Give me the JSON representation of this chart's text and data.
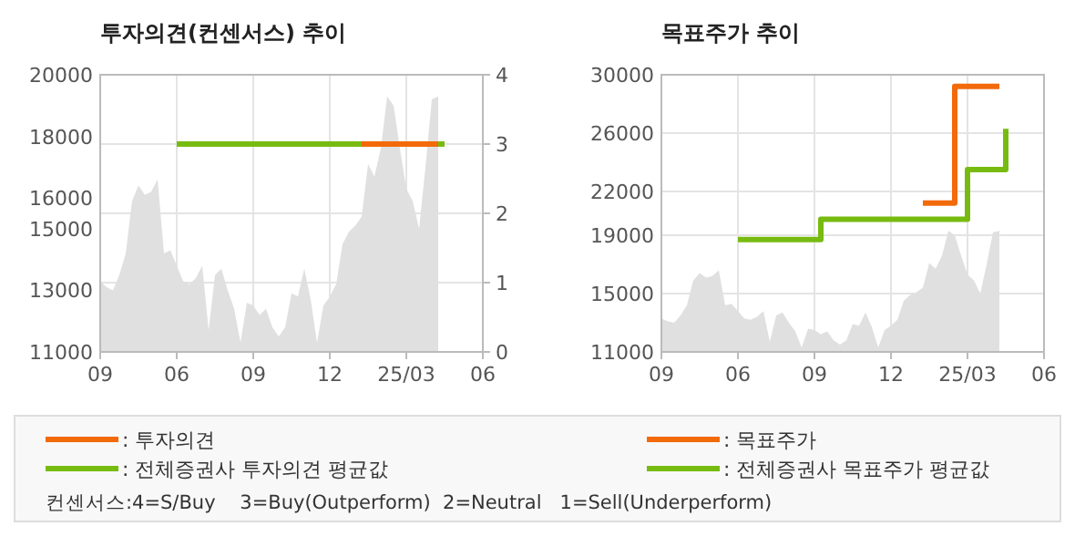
{
  "chart_data": [
    {
      "type": "area",
      "title": "투자의견(컨센서스) 추이",
      "grid": true,
      "legend": "bottom",
      "categories": [
        "09",
        null,
        null,
        null,
        null,
        null,
        null,
        null,
        null,
        null,
        null,
        null,
        "06",
        null,
        null,
        null,
        null,
        null,
        null,
        null,
        null,
        null,
        null,
        null,
        "09",
        null,
        null,
        null,
        null,
        null,
        null,
        null,
        null,
        null,
        null,
        null,
        "12",
        null,
        null,
        null,
        null,
        null,
        null,
        null,
        null,
        null,
        null,
        null,
        "25/03",
        null,
        null,
        null,
        null,
        null,
        null,
        null,
        null,
        null,
        null,
        null,
        "06"
      ],
      "ylim": [
        11000,
        20000
      ],
      "yticks": [
        11000,
        13000,
        15000,
        16000,
        18000,
        20000
      ],
      "y2lim": [
        0,
        4
      ],
      "y2ticks": [
        0,
        1,
        2,
        3,
        4
      ],
      "annotations": [
        "컨센서스:4=S/Buy    3=Buy(Outperform)  2=Neutral   1=Sell(Underperform)"
      ],
      "series": [
        {
          "color": "#e0e0e0",
          "values": [
            13300,
            13100,
            13000,
            13500,
            14200,
            15900,
            16400,
            16100,
            16200,
            16600,
            14200,
            14300,
            13800,
            13300,
            13200,
            13400,
            13800,
            11700,
            13500,
            13700,
            13000,
            12400,
            11300,
            12600,
            12500,
            12200,
            12400,
            11800,
            11500,
            11800,
            12900,
            12800,
            13700,
            12700,
            11300,
            12500,
            12800,
            13200,
            14500,
            14900,
            15100,
            15400,
            17100,
            16700,
            17600,
            19300,
            19000,
            17600,
            16300,
            15900,
            15000,
            17000,
            19200,
            19300,
            null,
            null,
            null,
            null,
            null,
            null,
            null
          ]
        },
        {
          "type": "line",
          "axis": "y2",
          "name": ": 투자의견",
          "color": "#f26a0a",
          "values": [
            null,
            null,
            null,
            null,
            null,
            null,
            null,
            null,
            null,
            null,
            null,
            null,
            null,
            null,
            null,
            null,
            null,
            null,
            null,
            null,
            null,
            null,
            null,
            null,
            null,
            null,
            null,
            null,
            null,
            null,
            null,
            null,
            null,
            null,
            null,
            null,
            null,
            null,
            null,
            null,
            null,
            3,
            3,
            3,
            3,
            3,
            3,
            3,
            3,
            3,
            3,
            3,
            3,
            3,
            null,
            null,
            null,
            null,
            null,
            null,
            null
          ]
        },
        {
          "type": "line",
          "axis": "y2",
          "name": ": 전체증권사 투자의견 평균값",
          "color": "#77bb11",
          "values": [
            null,
            null,
            null,
            null,
            null,
            null,
            null,
            null,
            null,
            null,
            null,
            null,
            3,
            3,
            3,
            3,
            3,
            3,
            3,
            3,
            3,
            3,
            3,
            3,
            3,
            3,
            3,
            3,
            3,
            3,
            3,
            3,
            3,
            3,
            3,
            3,
            3,
            3,
            3,
            3,
            3,
            3,
            null,
            null,
            null,
            null,
            null,
            null,
            null,
            null,
            null,
            null,
            null,
            3,
            3,
            null,
            null,
            null,
            null,
            null,
            null
          ]
        }
      ]
    },
    {
      "type": "step",
      "title": "목표주가 추이",
      "grid": true,
      "legend": "bottom",
      "categories": [
        "09",
        null,
        null,
        null,
        null,
        null,
        null,
        null,
        null,
        null,
        null,
        null,
        "06",
        null,
        null,
        null,
        null,
        null,
        null,
        null,
        null,
        null,
        null,
        null,
        "09",
        null,
        null,
        null,
        null,
        null,
        null,
        null,
        null,
        null,
        null,
        null,
        "12",
        null,
        null,
        null,
        null,
        null,
        null,
        null,
        null,
        null,
        null,
        null,
        "25/03",
        null,
        null,
        null,
        null,
        null,
        null,
        null,
        null,
        null,
        null,
        null,
        "06"
      ],
      "ylim": [
        11000,
        30000
      ],
      "yticks": [
        11000,
        15000,
        19000,
        22000,
        26000,
        30000
      ],
      "series": [
        {
          "type": "area",
          "color": "#e0e0e0",
          "values": [
            13300,
            13100,
            13000,
            13500,
            14200,
            15900,
            16400,
            16100,
            16200,
            16600,
            14200,
            14300,
            13800,
            13300,
            13200,
            13400,
            13800,
            11700,
            13500,
            13700,
            13000,
            12400,
            11300,
            12600,
            12500,
            12200,
            12400,
            11800,
            11500,
            11800,
            12900,
            12800,
            13700,
            12700,
            11300,
            12500,
            12800,
            13200,
            14500,
            14900,
            15100,
            15400,
            17100,
            16700,
            17600,
            19300,
            19000,
            17600,
            16300,
            15900,
            15000,
            17000,
            19200,
            19300,
            null,
            null,
            null,
            null,
            null,
            null,
            null
          ]
        },
        {
          "name": ": 목표주가",
          "color": "#f26a0a",
          "values": [
            null,
            null,
            null,
            null,
            null,
            null,
            null,
            null,
            null,
            null,
            null,
            null,
            null,
            null,
            null,
            null,
            null,
            null,
            null,
            null,
            null,
            null,
            null,
            null,
            null,
            null,
            null,
            null,
            null,
            null,
            null,
            null,
            null,
            null,
            null,
            null,
            null,
            null,
            null,
            null,
            null,
            21200,
            21200,
            21200,
            21200,
            21200,
            29200,
            29200,
            29200,
            29200,
            29200,
            29200,
            29200,
            29200,
            null,
            null,
            null,
            null,
            null,
            null,
            null
          ]
        },
        {
          "name": ": 전체증권사 목표주가 평균값",
          "color": "#77bb11",
          "values": [
            null,
            null,
            null,
            null,
            null,
            null,
            null,
            null,
            null,
            null,
            null,
            null,
            18700,
            18700,
            18700,
            18700,
            18700,
            18700,
            18700,
            18700,
            18700,
            18700,
            18700,
            18700,
            18700,
            20100,
            20100,
            20100,
            20100,
            20100,
            20100,
            20100,
            20100,
            20100,
            20100,
            20100,
            20100,
            20100,
            20100,
            20100,
            20100,
            20100,
            20100,
            20100,
            20100,
            20100,
            20100,
            20100,
            23500,
            23500,
            23500,
            23500,
            23500,
            23500,
            26300,
            null,
            null,
            null,
            null,
            null,
            null
          ]
        }
      ]
    }
  ]
}
